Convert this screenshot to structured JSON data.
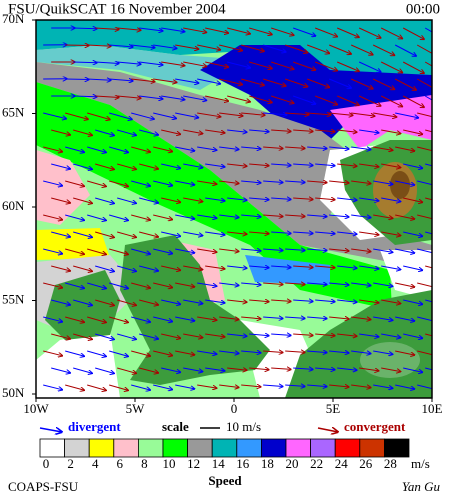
{
  "header": {
    "title": "FSU/QuikSCAT 16 November 2004",
    "time": "00:00"
  },
  "map": {
    "lat_labels": [
      "70N",
      "65N",
      "60N",
      "55N",
      "50N"
    ],
    "lon_labels": [
      "10W",
      "5W",
      "0",
      "5E",
      "10E"
    ]
  },
  "legend": {
    "divergent": "divergent",
    "scale": "scale",
    "scale_value": "10 m/s",
    "convergent": "convergent",
    "divergent_color": "#0000ff",
    "convergent_color": "#aa0000"
  },
  "colorbar": {
    "ticks": [
      0,
      2,
      4,
      6,
      8,
      10,
      12,
      14,
      16,
      18,
      20,
      22,
      24,
      26,
      28
    ],
    "colors": [
      "#ffffff",
      "#d3d3d3",
      "#ffff00",
      "#ffc0cb",
      "#98fb98",
      "#00ff00",
      "#999999",
      "#00b4b4",
      "#3399ff",
      "#0000cc",
      "#ff66ff",
      "#aa66ff",
      "#ff0000",
      "#cc3300",
      "#000000"
    ],
    "unit": "m/s",
    "label": "Speed"
  },
  "footer": {
    "left": "COAPS-FSU",
    "right": "Yan Gu"
  }
}
